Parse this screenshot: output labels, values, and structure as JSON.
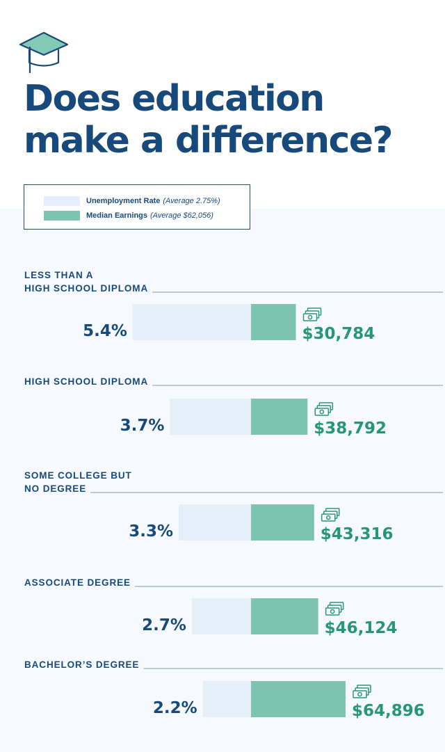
{
  "title_lines": [
    "Does education",
    "make a difference?"
  ],
  "icons": {
    "header": "graduation-cap-icon",
    "earnings": "money-stack-icon"
  },
  "colors": {
    "title": "#17497a",
    "unemployment_bar": "#e5eff9",
    "earnings_bar": "#7cc3b0",
    "earnings_text": "#26957b",
    "separator": "#8a9cb0"
  },
  "legend": {
    "items": [
      {
        "label": "Unemployment Rate",
        "note": "(Average 2.75%)",
        "color": "#e5eff9"
      },
      {
        "label": "Median Earnings",
        "note": "(Average $62,056)",
        "color": "#7cc3b0"
      }
    ]
  },
  "chart_data": {
    "type": "bar",
    "title": "Does education make a difference?",
    "categories": [
      "LESS THAN A HIGH SCHOOL DIPLOMA",
      "HIGH SCHOOL DIPLOMA",
      "SOME COLLEGE BUT NO DEGREE",
      "ASSOCIATE DEGREE",
      "BACHELOR’S DEGREE"
    ],
    "category_lines": [
      [
        "LESS THAN A",
        "HIGH SCHOOL DIPLOMA"
      ],
      [
        "HIGH SCHOOL DIPLOMA"
      ],
      [
        "SOME COLLEGE BUT",
        "NO DEGREE"
      ],
      [
        "ASSOCIATE DEGREE"
      ],
      [
        "BACHELOR’S DEGREE"
      ]
    ],
    "series": [
      {
        "name": "Unemployment Rate",
        "values": [
          5.4,
          3.7,
          3.3,
          2.7,
          2.2
        ],
        "labels": [
          "5.4%",
          "3.7%",
          "3.3%",
          "2.7%",
          "2.2%"
        ],
        "average": 2.75
      },
      {
        "name": "Median Earnings",
        "values": [
          30784,
          38792,
          43316,
          46124,
          64896
        ],
        "labels": [
          "$30,784",
          "$38,792",
          "$43,316",
          "$46,124",
          "$64,896"
        ],
        "average": 62056
      }
    ],
    "legend_placement": "top-left",
    "grid": false
  }
}
